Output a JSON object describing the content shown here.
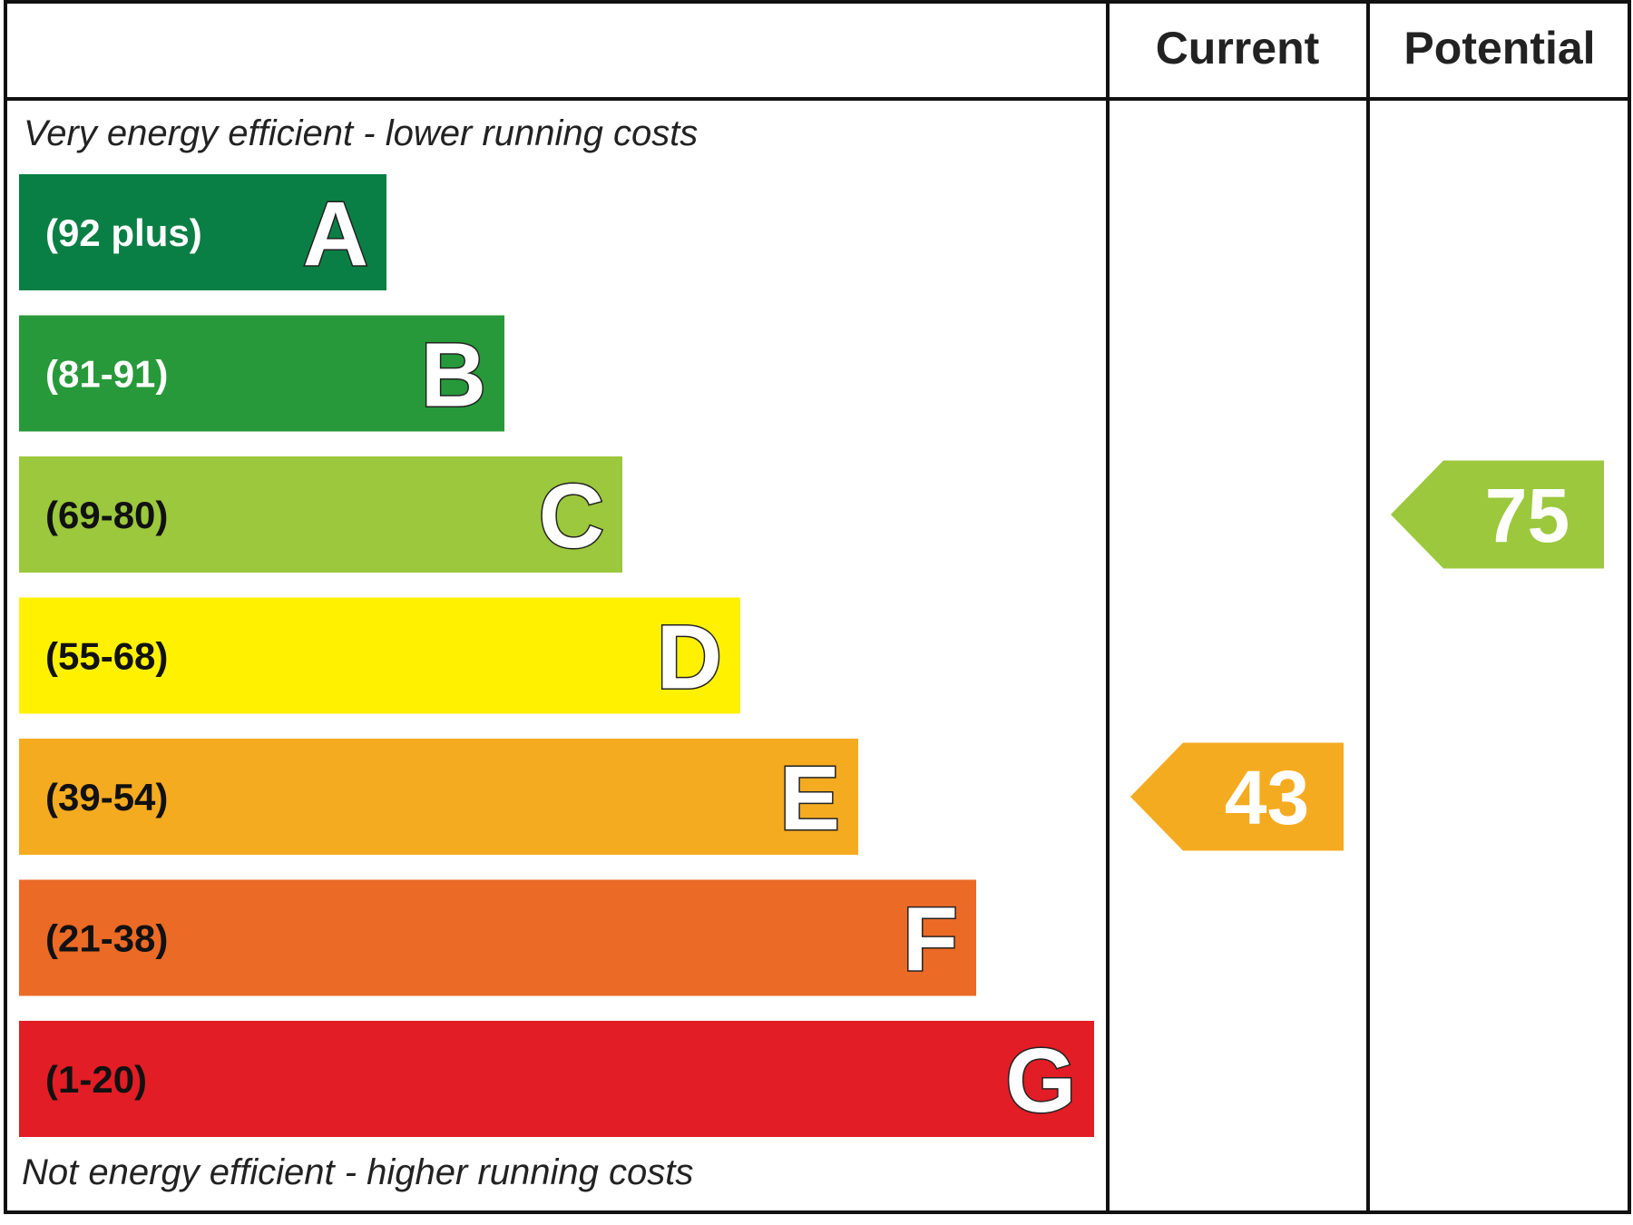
{
  "header": {
    "current": "Current",
    "potential": "Potential"
  },
  "top_note": "Very energy efficient - lower running costs",
  "bottom_note": "Not energy efficient - higher running costs",
  "bands": [
    {
      "range": "(92 plus)",
      "letter": "A",
      "color": "#0a7f45",
      "text_color": "#ffffff"
    },
    {
      "range": "(81-91)",
      "letter": "B",
      "color": "#27993a",
      "text_color": "#ffffff"
    },
    {
      "range": "(69-80)",
      "letter": "C",
      "color": "#9bc83c",
      "text_color": "#111111"
    },
    {
      "range": "(55-68)",
      "letter": "D",
      "color": "#fff100",
      "text_color": "#111111"
    },
    {
      "range": "(39-54)",
      "letter": "E",
      "color": "#f5ab20",
      "text_color": "#111111"
    },
    {
      "range": "(21-38)",
      "letter": "F",
      "color": "#eb6a25",
      "text_color": "#111111"
    },
    {
      "range": "(1-20)",
      "letter": "G",
      "color": "#e21d25",
      "text_color": "#111111"
    }
  ],
  "current": {
    "value": 43
  },
  "potential": {
    "value": 75
  }
}
